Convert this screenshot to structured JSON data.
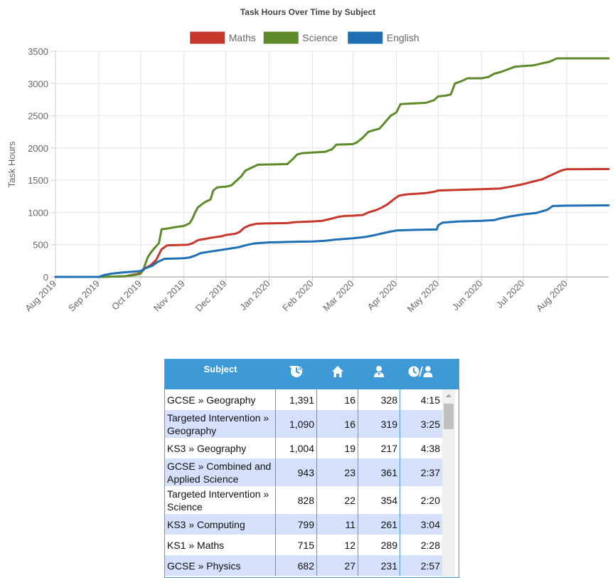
{
  "chart_data": {
    "type": "line",
    "title": "Task Hours Over Time by Subject",
    "ylabel": "Task Hours",
    "xlabel": "",
    "ylim": [
      0,
      3500
    ],
    "yticks": [
      0,
      500,
      1000,
      1500,
      2000,
      2500,
      3000,
      3500
    ],
    "xlim": [
      "2019-08-01",
      "2020-08-31"
    ],
    "x_tick_labels": [
      "Aug 2019",
      "Sep 2019",
      "Oct 2019",
      "Nov 2019",
      "Dec 2019",
      "Jan 2020",
      "Feb 2020",
      "Mar 2020",
      "Apr 2020",
      "May 2020",
      "Jun 2020",
      "Jul 2020",
      "Aug 2020"
    ],
    "x_tick_dates": [
      "2019-08-01",
      "2019-09-01",
      "2019-10-01",
      "2019-11-01",
      "2019-12-01",
      "2020-01-01",
      "2020-02-01",
      "2020-03-01",
      "2020-04-01",
      "2020-05-01",
      "2020-06-01",
      "2020-07-01",
      "2020-08-01"
    ],
    "grid": true,
    "legend_position": "top",
    "series": [
      {
        "name": "Maths",
        "color": "#c7372b",
        "points": [
          [
            "2019-08-01",
            0
          ],
          [
            "2019-09-01",
            0
          ],
          [
            "2019-09-20",
            10
          ],
          [
            "2019-09-27",
            40
          ],
          [
            "2019-10-01",
            60
          ],
          [
            "2019-10-04",
            130
          ],
          [
            "2019-10-08",
            180
          ],
          [
            "2019-10-12",
            260
          ],
          [
            "2019-10-16",
            430
          ],
          [
            "2019-10-20",
            490
          ],
          [
            "2019-10-28",
            495
          ],
          [
            "2019-11-04",
            500
          ],
          [
            "2019-11-07",
            520
          ],
          [
            "2019-11-11",
            570
          ],
          [
            "2019-11-16",
            590
          ],
          [
            "2019-11-21",
            610
          ],
          [
            "2019-11-28",
            630
          ],
          [
            "2019-12-01",
            650
          ],
          [
            "2019-12-08",
            670
          ],
          [
            "2019-12-11",
            700
          ],
          [
            "2019-12-14",
            760
          ],
          [
            "2019-12-18",
            800
          ],
          [
            "2019-12-23",
            825
          ],
          [
            "2020-01-01",
            830
          ],
          [
            "2020-01-14",
            835
          ],
          [
            "2020-01-20",
            850
          ],
          [
            "2020-02-01",
            860
          ],
          [
            "2020-02-08",
            870
          ],
          [
            "2020-02-14",
            900
          ],
          [
            "2020-02-19",
            930
          ],
          [
            "2020-02-24",
            945
          ],
          [
            "2020-03-01",
            950
          ],
          [
            "2020-03-08",
            960
          ],
          [
            "2020-03-12",
            1000
          ],
          [
            "2020-03-18",
            1040
          ],
          [
            "2020-03-22",
            1080
          ],
          [
            "2020-03-26",
            1130
          ],
          [
            "2020-03-30",
            1200
          ],
          [
            "2020-04-03",
            1260
          ],
          [
            "2020-04-08",
            1280
          ],
          [
            "2020-04-15",
            1290
          ],
          [
            "2020-04-22",
            1300
          ],
          [
            "2020-04-28",
            1320
          ],
          [
            "2020-05-01",
            1340
          ],
          [
            "2020-05-15",
            1350
          ],
          [
            "2020-06-01",
            1360
          ],
          [
            "2020-06-14",
            1370
          ],
          [
            "2020-06-22",
            1400
          ],
          [
            "2020-07-01",
            1440
          ],
          [
            "2020-07-08",
            1480
          ],
          [
            "2020-07-14",
            1510
          ],
          [
            "2020-07-19",
            1560
          ],
          [
            "2020-07-24",
            1610
          ],
          [
            "2020-07-28",
            1650
          ],
          [
            "2020-08-01",
            1670
          ],
          [
            "2020-08-15",
            1672
          ],
          [
            "2020-08-31",
            1673
          ]
        ]
      },
      {
        "name": "Science",
        "color": "#5e8a2a",
        "points": [
          [
            "2019-08-01",
            0
          ],
          [
            "2019-09-01",
            0
          ],
          [
            "2019-09-20",
            10
          ],
          [
            "2019-09-27",
            30
          ],
          [
            "2019-10-01",
            50
          ],
          [
            "2019-10-03",
            120
          ],
          [
            "2019-10-06",
            300
          ],
          [
            "2019-10-08",
            370
          ],
          [
            "2019-10-11",
            450
          ],
          [
            "2019-10-14",
            520
          ],
          [
            "2019-10-16",
            740
          ],
          [
            "2019-10-20",
            750
          ],
          [
            "2019-10-25",
            770
          ],
          [
            "2019-11-01",
            790
          ],
          [
            "2019-11-05",
            830
          ],
          [
            "2019-11-07",
            900
          ],
          [
            "2019-11-09",
            1000
          ],
          [
            "2019-11-11",
            1080
          ],
          [
            "2019-11-16",
            1160
          ],
          [
            "2019-11-20",
            1200
          ],
          [
            "2019-11-22",
            1340
          ],
          [
            "2019-11-25",
            1390
          ],
          [
            "2019-12-01",
            1400
          ],
          [
            "2019-12-05",
            1420
          ],
          [
            "2019-12-09",
            1500
          ],
          [
            "2019-12-12",
            1560
          ],
          [
            "2019-12-15",
            1650
          ],
          [
            "2019-12-20",
            1700
          ],
          [
            "2019-12-24",
            1740
          ],
          [
            "2020-01-01",
            1745
          ],
          [
            "2020-01-14",
            1750
          ],
          [
            "2020-01-18",
            1830
          ],
          [
            "2020-01-21",
            1900
          ],
          [
            "2020-01-25",
            1920
          ],
          [
            "2020-02-01",
            1930
          ],
          [
            "2020-02-10",
            1940
          ],
          [
            "2020-02-15",
            1980
          ],
          [
            "2020-02-18",
            2050
          ],
          [
            "2020-03-01",
            2060
          ],
          [
            "2020-03-04",
            2090
          ],
          [
            "2020-03-08",
            2160
          ],
          [
            "2020-03-12",
            2250
          ],
          [
            "2020-03-15",
            2270
          ],
          [
            "2020-03-20",
            2300
          ],
          [
            "2020-03-24",
            2400
          ],
          [
            "2020-03-28",
            2500
          ],
          [
            "2020-04-01",
            2550
          ],
          [
            "2020-04-04",
            2680
          ],
          [
            "2020-04-12",
            2690
          ],
          [
            "2020-04-22",
            2700
          ],
          [
            "2020-04-28",
            2740
          ],
          [
            "2020-05-01",
            2800
          ],
          [
            "2020-05-06",
            2810
          ],
          [
            "2020-05-10",
            2830
          ],
          [
            "2020-05-13",
            3000
          ],
          [
            "2020-05-18",
            3040
          ],
          [
            "2020-05-22",
            3080
          ],
          [
            "2020-06-01",
            3080
          ],
          [
            "2020-06-06",
            3100
          ],
          [
            "2020-06-10",
            3150
          ],
          [
            "2020-06-15",
            3180
          ],
          [
            "2020-06-20",
            3220
          ],
          [
            "2020-06-25",
            3260
          ],
          [
            "2020-07-01",
            3270
          ],
          [
            "2020-07-08",
            3280
          ],
          [
            "2020-07-14",
            3310
          ],
          [
            "2020-07-20",
            3340
          ],
          [
            "2020-07-25",
            3390
          ],
          [
            "2020-08-01",
            3390
          ],
          [
            "2020-08-31",
            3390
          ]
        ]
      },
      {
        "name": "English",
        "color": "#1f6fb5",
        "points": [
          [
            "2019-08-01",
            0
          ],
          [
            "2019-09-01",
            0
          ],
          [
            "2019-09-05",
            30
          ],
          [
            "2019-09-10",
            50
          ],
          [
            "2019-09-18",
            70
          ],
          [
            "2019-09-25",
            80
          ],
          [
            "2019-10-01",
            90
          ],
          [
            "2019-10-04",
            130
          ],
          [
            "2019-10-09",
            170
          ],
          [
            "2019-10-13",
            230
          ],
          [
            "2019-10-18",
            280
          ],
          [
            "2019-10-25",
            285
          ],
          [
            "2019-11-01",
            290
          ],
          [
            "2019-11-05",
            300
          ],
          [
            "2019-11-09",
            330
          ],
          [
            "2019-11-13",
            370
          ],
          [
            "2019-11-22",
            400
          ],
          [
            "2019-12-01",
            430
          ],
          [
            "2019-12-10",
            460
          ],
          [
            "2019-12-17",
            500
          ],
          [
            "2019-12-22",
            520
          ],
          [
            "2020-01-01",
            535
          ],
          [
            "2020-01-20",
            545
          ],
          [
            "2020-02-01",
            550
          ],
          [
            "2020-02-10",
            560
          ],
          [
            "2020-02-18",
            580
          ],
          [
            "2020-03-01",
            600
          ],
          [
            "2020-03-10",
            620
          ],
          [
            "2020-03-17",
            650
          ],
          [
            "2020-03-25",
            690
          ],
          [
            "2020-04-01",
            720
          ],
          [
            "2020-04-15",
            730
          ],
          [
            "2020-04-30",
            735
          ],
          [
            "2020-05-01",
            800
          ],
          [
            "2020-05-04",
            840
          ],
          [
            "2020-05-15",
            860
          ],
          [
            "2020-06-01",
            870
          ],
          [
            "2020-06-10",
            880
          ],
          [
            "2020-06-15",
            910
          ],
          [
            "2020-06-22",
            940
          ],
          [
            "2020-07-01",
            970
          ],
          [
            "2020-07-10",
            990
          ],
          [
            "2020-07-18",
            1040
          ],
          [
            "2020-07-22",
            1100
          ],
          [
            "2020-08-01",
            1105
          ],
          [
            "2020-08-31",
            1110
          ]
        ]
      }
    ]
  },
  "table": {
    "columns": [
      {
        "label": "Subject"
      },
      {
        "icon": "clock-icon"
      },
      {
        "icon": "home-icon"
      },
      {
        "icon": "user-icon"
      },
      {
        "icon": "clock-per-user-icon"
      }
    ],
    "rows": [
      {
        "subject": "GCSE » Geography",
        "hours": "1,391",
        "homes": "16",
        "users": "328",
        "per_user": "4:15"
      },
      {
        "subject": "Targeted Intervention » Geography",
        "hours": "1,090",
        "homes": "16",
        "users": "319",
        "per_user": "3:25"
      },
      {
        "subject": "KS3 » Geography",
        "hours": "1,004",
        "homes": "19",
        "users": "217",
        "per_user": "4:38"
      },
      {
        "subject": "GCSE » Combined and Applied Science",
        "hours": "943",
        "homes": "23",
        "users": "361",
        "per_user": "2:37"
      },
      {
        "subject": "Targeted Intervention » Science",
        "hours": "828",
        "homes": "22",
        "users": "354",
        "per_user": "2:20"
      },
      {
        "subject": "KS3 » Computing",
        "hours": "799",
        "homes": "11",
        "users": "261",
        "per_user": "3:04"
      },
      {
        "subject": "KS1 » Maths",
        "hours": "715",
        "homes": "12",
        "users": "289",
        "per_user": "2:28"
      },
      {
        "subject": "GCSE » Physics",
        "hours": "682",
        "homes": "27",
        "users": "231",
        "per_user": "2:57"
      }
    ]
  }
}
